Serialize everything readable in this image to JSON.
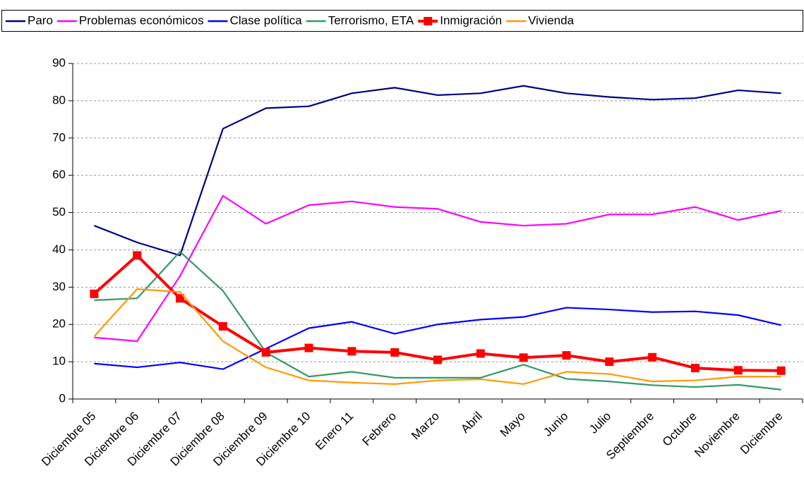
{
  "chart_data": {
    "type": "line",
    "categories": [
      "Diciembre 05",
      "Diciembre 06",
      "Diciembre 07",
      "Diciembre 08",
      "Diciembre 09",
      "Diciembre 10",
      "Enero 11",
      "Febrero",
      "Marzo",
      "Abril",
      "Mayo",
      "Junio",
      "Julio",
      "Septiembre",
      "Octubre",
      "Noviembre",
      "Diciembre"
    ],
    "series": [
      {
        "name": "Paro",
        "color": "#000080",
        "values": [
          46.5,
          42,
          38.5,
          72.5,
          78,
          78.5,
          82,
          83.5,
          81.5,
          82,
          84,
          82,
          81,
          80.3,
          80.7,
          82.8,
          82
        ]
      },
      {
        "name": "Problemas económicos",
        "color": "#ff00ff",
        "values": [
          16.5,
          15.5,
          33,
          54.5,
          47,
          52,
          53,
          51.5,
          51,
          47.5,
          46.5,
          47,
          49.5,
          49.5,
          51.5,
          48,
          50.5
        ]
      },
      {
        "name": "Clase política",
        "color": "#0000ff",
        "values": [
          9.5,
          8.5,
          9.8,
          8,
          13.5,
          19,
          20.7,
          17.5,
          20,
          21.3,
          22,
          24.5,
          24,
          23.3,
          23.5,
          22.5,
          19.8
        ]
      },
      {
        "name": "Terrorismo, ETA",
        "color": "#339966",
        "values": [
          26.5,
          27,
          39.5,
          29,
          12.5,
          6,
          7.3,
          5.7,
          5.7,
          5.7,
          9.2,
          5.4,
          4.7,
          3.7,
          3.2,
          3.8,
          2.5
        ]
      },
      {
        "name": "Inmigración",
        "color": "#ff0000",
        "marker": "square",
        "values": [
          28.2,
          38.5,
          27,
          19.5,
          12.5,
          13.7,
          12.8,
          12.5,
          10.5,
          12.2,
          11.1,
          11.7,
          10,
          11.2,
          8.3,
          7.7,
          7.6
        ]
      },
      {
        "name": "Vivienda",
        "color": "#ff9900",
        "values": [
          16.8,
          29.5,
          28.7,
          15.5,
          8.5,
          5,
          4.4,
          4,
          5,
          5.3,
          4,
          7.3,
          6.7,
          4.7,
          5,
          6,
          6
        ]
      }
    ],
    "ylim": [
      0,
      90
    ],
    "yticks": [
      0,
      10,
      20,
      30,
      40,
      50,
      60,
      70,
      80,
      90
    ],
    "grid": true,
    "legend": "top"
  }
}
